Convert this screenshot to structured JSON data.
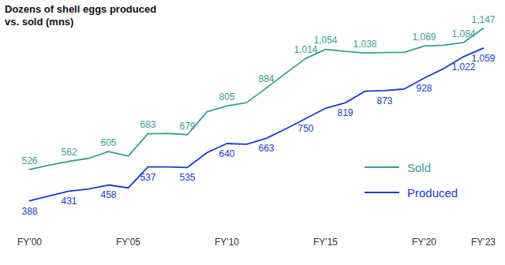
{
  "chart_data": {
    "type": "line",
    "title": "Dozens of shell eggs produced vs. sold (mns)",
    "categories": [
      "FY'00",
      null,
      null,
      null,
      null,
      "FY'05",
      null,
      null,
      null,
      null,
      "FY'10",
      null,
      null,
      null,
      null,
      "FY'15",
      null,
      null,
      null,
      null,
      "FY'20",
      null,
      null,
      "FY'23"
    ],
    "series": [
      {
        "name": "Sold",
        "color": "#3a9e95",
        "values": [
          526,
          545,
          562,
          575,
          605,
          585,
          683,
          685,
          679,
          780,
          805,
          820,
          884,
          950,
          1014,
          1054,
          1045,
          1038,
          1040,
          1041,
          1069,
          1072,
          1084,
          1147
        ],
        "value_labels": [
          "526",
          null,
          "562",
          null,
          "605",
          null,
          "683",
          null,
          "679",
          null,
          "805",
          null,
          "884",
          null,
          "1,014",
          "1,054",
          null,
          "1,038",
          null,
          null,
          "1,069",
          null,
          "1,084",
          "1,147"
        ]
      },
      {
        "name": "Produced",
        "color": "#1a3cc8",
        "values": [
          388,
          410,
          431,
          440,
          458,
          445,
          537,
          537,
          535,
          600,
          640,
          637,
          663,
          705,
          750,
          795,
          819,
          870,
          873,
          880,
          928,
          970,
          1022,
          1059
        ],
        "value_labels": [
          "388",
          null,
          "431",
          null,
          "458",
          null,
          "537",
          null,
          "535",
          null,
          "640",
          null,
          "663",
          null,
          "750",
          null,
          "819",
          null,
          "873",
          null,
          "928",
          null,
          "1,022",
          "1,059"
        ]
      }
    ],
    "ylim": [
      250,
      1200
    ],
    "grid": false,
    "legend": "right",
    "data_labels": true,
    "tick_labels": "x"
  }
}
